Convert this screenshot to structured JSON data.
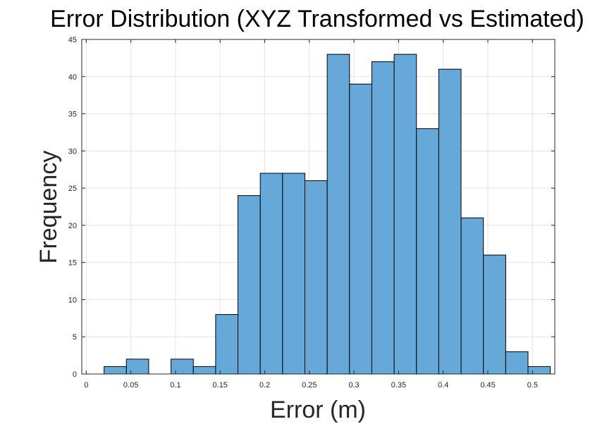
{
  "chart_data": {
    "type": "bar",
    "title": "Error Distribution (XYZ Transformed vs Estimated)",
    "xlabel": "Error (m)",
    "ylabel": "Frequency",
    "xlim": [
      -0.005,
      0.525
    ],
    "ylim": [
      0,
      45
    ],
    "grid": true,
    "legend": "none",
    "bin_width": 0.025,
    "bins": [
      {
        "x0": 0.02,
        "x1": 0.045,
        "value": 1
      },
      {
        "x0": 0.045,
        "x1": 0.07,
        "value": 2
      },
      {
        "x0": 0.07,
        "x1": 0.095,
        "value": 0
      },
      {
        "x0": 0.095,
        "x1": 0.12,
        "value": 2
      },
      {
        "x0": 0.12,
        "x1": 0.145,
        "value": 1
      },
      {
        "x0": 0.145,
        "x1": 0.17,
        "value": 8
      },
      {
        "x0": 0.17,
        "x1": 0.195,
        "value": 24
      },
      {
        "x0": 0.195,
        "x1": 0.22,
        "value": 27
      },
      {
        "x0": 0.22,
        "x1": 0.245,
        "value": 27
      },
      {
        "x0": 0.245,
        "x1": 0.27,
        "value": 26
      },
      {
        "x0": 0.27,
        "x1": 0.295,
        "value": 43
      },
      {
        "x0": 0.295,
        "x1": 0.32,
        "value": 39
      },
      {
        "x0": 0.32,
        "x1": 0.345,
        "value": 42
      },
      {
        "x0": 0.345,
        "x1": 0.37,
        "value": 43
      },
      {
        "x0": 0.37,
        "x1": 0.395,
        "value": 33
      },
      {
        "x0": 0.395,
        "x1": 0.42,
        "value": 41
      },
      {
        "x0": 0.42,
        "x1": 0.445,
        "value": 21
      },
      {
        "x0": 0.445,
        "x1": 0.47,
        "value": 16
      },
      {
        "x0": 0.47,
        "x1": 0.495,
        "value": 3
      },
      {
        "x0": 0.495,
        "x1": 0.52,
        "value": 1
      }
    ],
    "x_ticks": [
      {
        "value": 0,
        "label": "0"
      },
      {
        "value": 0.05,
        "label": "0.05"
      },
      {
        "value": 0.1,
        "label": "0.1"
      },
      {
        "value": 0.15,
        "label": "0.15"
      },
      {
        "value": 0.2,
        "label": "0.2"
      },
      {
        "value": 0.25,
        "label": "0.25"
      },
      {
        "value": 0.3,
        "label": "0.3"
      },
      {
        "value": 0.35,
        "label": "0.35"
      },
      {
        "value": 0.4,
        "label": "0.4"
      },
      {
        "value": 0.45,
        "label": "0.45"
      },
      {
        "value": 0.5,
        "label": "0.5"
      }
    ],
    "y_ticks": [
      {
        "value": 0,
        "label": "0"
      },
      {
        "value": 5,
        "label": "5"
      },
      {
        "value": 10,
        "label": "10"
      },
      {
        "value": 15,
        "label": "15"
      },
      {
        "value": 20,
        "label": "20"
      },
      {
        "value": 25,
        "label": "25"
      },
      {
        "value": 30,
        "label": "30"
      },
      {
        "value": 35,
        "label": "35"
      },
      {
        "value": 40,
        "label": "40"
      },
      {
        "value": 45,
        "label": "45"
      }
    ],
    "colors": {
      "bar_fill": "#66a9d9",
      "bar_edge": "#000000",
      "grid": "#e3e3e3",
      "axis": "#262626",
      "background": "#ffffff"
    }
  }
}
